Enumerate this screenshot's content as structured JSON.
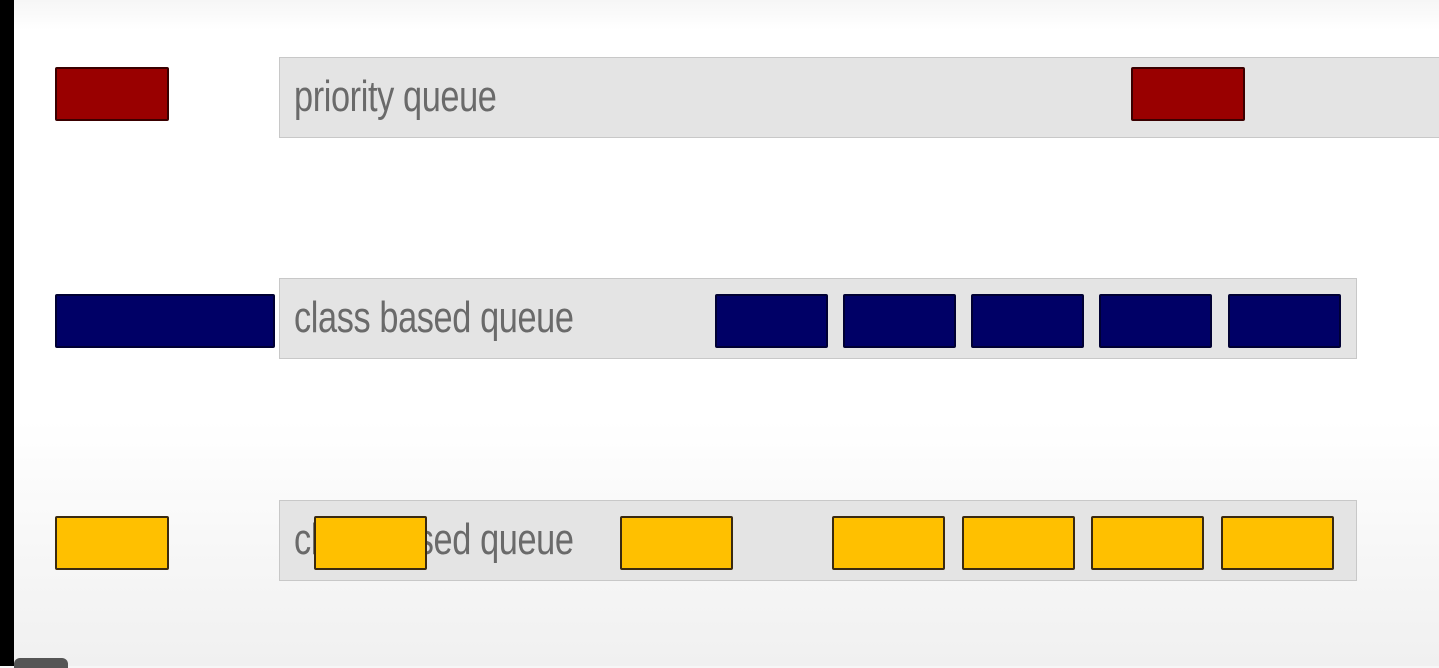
{
  "colors": {
    "priority": "#990000",
    "class_based": "#000066",
    "third": "#FFC000"
  },
  "queues": [
    {
      "label": "priority queue",
      "color": "#990000",
      "incoming_packets": 1,
      "queued_packets": 1
    },
    {
      "label": "class based queue",
      "color": "#000066",
      "incoming_packets": 1,
      "queued_packets": 5
    },
    {
      "label": "class based queue",
      "color": "#FFC000",
      "incoming_packets": 1,
      "queued_packets": 6
    }
  ]
}
